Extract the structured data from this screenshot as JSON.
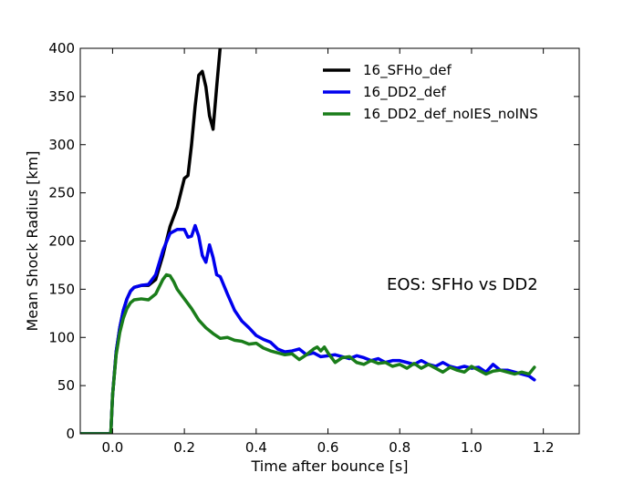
{
  "chart_data": {
    "type": "line",
    "title": "",
    "xlabel": "Time after bounce [s]",
    "ylabel": "Mean Shock Radius [km]",
    "xlim": [
      -0.09,
      1.3
    ],
    "ylim": [
      0,
      400
    ],
    "xticks": [
      0.0,
      0.2,
      0.4,
      0.6,
      0.8,
      1.0,
      1.2
    ],
    "xtick_labels": [
      "0.0",
      "0.2",
      "0.4",
      "0.6",
      "0.8",
      "1.0",
      "1.2"
    ],
    "yticks": [
      0,
      50,
      100,
      150,
      200,
      250,
      300,
      350,
      400
    ],
    "ytick_labels": [
      "0",
      "50",
      "100",
      "150",
      "200",
      "250",
      "300",
      "350",
      "400"
    ],
    "grid": false,
    "legend_position": "top-right",
    "annotation": "EOS: SFHo vs DD2",
    "series": [
      {
        "name": "16_SFHo_def",
        "color": "#000000",
        "points": [
          [
            -0.09,
            0
          ],
          [
            -0.005,
            0
          ],
          [
            0.0,
            40
          ],
          [
            0.01,
            85
          ],
          [
            0.02,
            110
          ],
          [
            0.03,
            128
          ],
          [
            0.04,
            140
          ],
          [
            0.05,
            148
          ],
          [
            0.06,
            152
          ],
          [
            0.08,
            154
          ],
          [
            0.1,
            154
          ],
          [
            0.12,
            160
          ],
          [
            0.14,
            185
          ],
          [
            0.16,
            215
          ],
          [
            0.18,
            235
          ],
          [
            0.19,
            250
          ],
          [
            0.2,
            265
          ],
          [
            0.21,
            268
          ],
          [
            0.22,
            300
          ],
          [
            0.23,
            340
          ],
          [
            0.24,
            372
          ],
          [
            0.25,
            376
          ],
          [
            0.26,
            360
          ],
          [
            0.27,
            330
          ],
          [
            0.28,
            316
          ],
          [
            0.29,
            360
          ],
          [
            0.3,
            402
          ]
        ]
      },
      {
        "name": "16_DD2_def",
        "color": "#0000ee",
        "points": [
          [
            -0.09,
            0
          ],
          [
            -0.005,
            0
          ],
          [
            0.0,
            40
          ],
          [
            0.01,
            85
          ],
          [
            0.02,
            110
          ],
          [
            0.03,
            128
          ],
          [
            0.04,
            140
          ],
          [
            0.05,
            148
          ],
          [
            0.06,
            152
          ],
          [
            0.08,
            154
          ],
          [
            0.1,
            155
          ],
          [
            0.12,
            165
          ],
          [
            0.14,
            190
          ],
          [
            0.16,
            208
          ],
          [
            0.18,
            212
          ],
          [
            0.2,
            212
          ],
          [
            0.21,
            204
          ],
          [
            0.22,
            205
          ],
          [
            0.23,
            216
          ],
          [
            0.24,
            205
          ],
          [
            0.25,
            185
          ],
          [
            0.26,
            178
          ],
          [
            0.27,
            196
          ],
          [
            0.28,
            183
          ],
          [
            0.29,
            165
          ],
          [
            0.3,
            163
          ],
          [
            0.32,
            145
          ],
          [
            0.34,
            128
          ],
          [
            0.36,
            117
          ],
          [
            0.38,
            110
          ],
          [
            0.4,
            102
          ],
          [
            0.42,
            98
          ],
          [
            0.44,
            95
          ],
          [
            0.46,
            88
          ],
          [
            0.48,
            85
          ],
          [
            0.5,
            86
          ],
          [
            0.52,
            88
          ],
          [
            0.54,
            82
          ],
          [
            0.56,
            84
          ],
          [
            0.58,
            80
          ],
          [
            0.6,
            81
          ],
          [
            0.62,
            82
          ],
          [
            0.64,
            80
          ],
          [
            0.66,
            78
          ],
          [
            0.68,
            81
          ],
          [
            0.7,
            79
          ],
          [
            0.72,
            76
          ],
          [
            0.74,
            78
          ],
          [
            0.76,
            74
          ],
          [
            0.78,
            76
          ],
          [
            0.8,
            76
          ],
          [
            0.82,
            74
          ],
          [
            0.84,
            72
          ],
          [
            0.86,
            76
          ],
          [
            0.88,
            72
          ],
          [
            0.9,
            70
          ],
          [
            0.92,
            74
          ],
          [
            0.94,
            70
          ],
          [
            0.96,
            68
          ],
          [
            0.98,
            70
          ],
          [
            1.0,
            68
          ],
          [
            1.02,
            69
          ],
          [
            1.04,
            64
          ],
          [
            1.06,
            72
          ],
          [
            1.08,
            66
          ],
          [
            1.1,
            66
          ],
          [
            1.12,
            64
          ],
          [
            1.14,
            62
          ],
          [
            1.16,
            60
          ],
          [
            1.175,
            56
          ]
        ]
      },
      {
        "name": "16_DD2_def_noIES_noINS",
        "color": "#1a7d1a",
        "points": [
          [
            -0.09,
            0
          ],
          [
            -0.005,
            0
          ],
          [
            0.0,
            40
          ],
          [
            0.01,
            82
          ],
          [
            0.02,
            105
          ],
          [
            0.03,
            120
          ],
          [
            0.04,
            130
          ],
          [
            0.05,
            136
          ],
          [
            0.06,
            139
          ],
          [
            0.08,
            140
          ],
          [
            0.1,
            139
          ],
          [
            0.12,
            145
          ],
          [
            0.14,
            160
          ],
          [
            0.15,
            165
          ],
          [
            0.16,
            164
          ],
          [
            0.17,
            158
          ],
          [
            0.18,
            150
          ],
          [
            0.2,
            140
          ],
          [
            0.22,
            130
          ],
          [
            0.24,
            118
          ],
          [
            0.26,
            110
          ],
          [
            0.28,
            104
          ],
          [
            0.3,
            99
          ],
          [
            0.32,
            100
          ],
          [
            0.34,
            97
          ],
          [
            0.36,
            96
          ],
          [
            0.38,
            93
          ],
          [
            0.4,
            94
          ],
          [
            0.42,
            89
          ],
          [
            0.44,
            86
          ],
          [
            0.46,
            84
          ],
          [
            0.48,
            82
          ],
          [
            0.5,
            83
          ],
          [
            0.52,
            77
          ],
          [
            0.54,
            82
          ],
          [
            0.56,
            88
          ],
          [
            0.57,
            90
          ],
          [
            0.58,
            86
          ],
          [
            0.59,
            90
          ],
          [
            0.6,
            84
          ],
          [
            0.62,
            74
          ],
          [
            0.64,
            79
          ],
          [
            0.66,
            80
          ],
          [
            0.68,
            74
          ],
          [
            0.7,
            72
          ],
          [
            0.72,
            76
          ],
          [
            0.74,
            73
          ],
          [
            0.76,
            74
          ],
          [
            0.78,
            70
          ],
          [
            0.8,
            72
          ],
          [
            0.82,
            68
          ],
          [
            0.84,
            73
          ],
          [
            0.86,
            68
          ],
          [
            0.88,
            72
          ],
          [
            0.9,
            68
          ],
          [
            0.92,
            64
          ],
          [
            0.94,
            69
          ],
          [
            0.96,
            66
          ],
          [
            0.98,
            64
          ],
          [
            1.0,
            70
          ],
          [
            1.02,
            66
          ],
          [
            1.04,
            62
          ],
          [
            1.06,
            65
          ],
          [
            1.08,
            66
          ],
          [
            1.1,
            64
          ],
          [
            1.12,
            62
          ],
          [
            1.14,
            64
          ],
          [
            1.16,
            62
          ],
          [
            1.175,
            69
          ]
        ]
      }
    ]
  }
}
